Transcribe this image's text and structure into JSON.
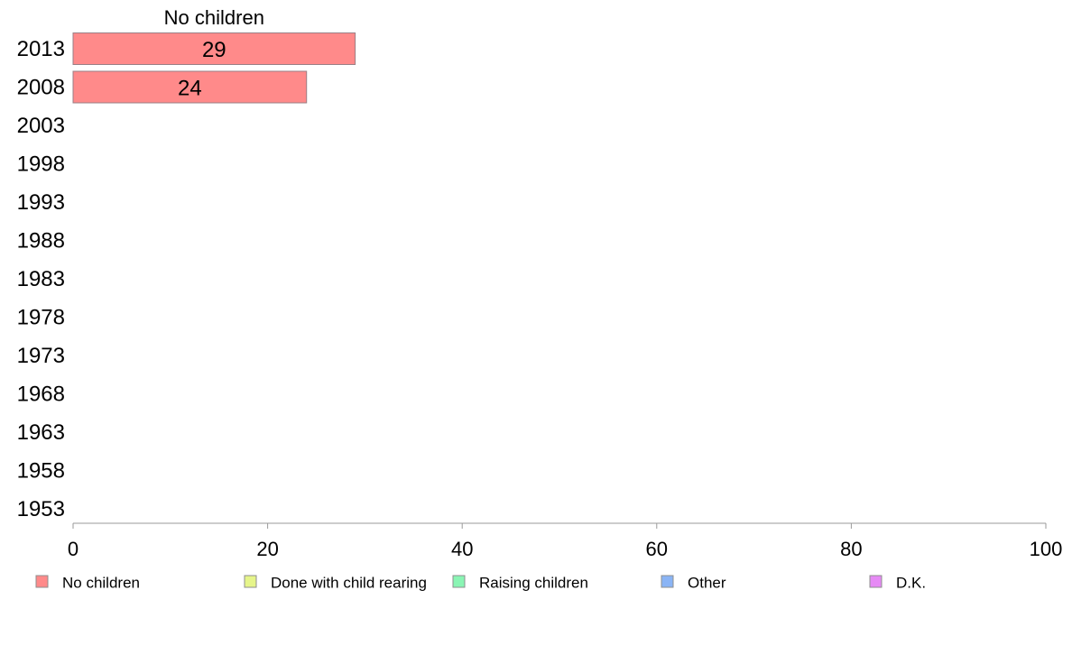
{
  "chart_data": {
    "type": "bar",
    "orientation": "horizontal",
    "stacked": true,
    "categories": [
      "2013",
      "2008",
      "2003",
      "1998",
      "1993",
      "1988",
      "1983",
      "1978",
      "1973",
      "1968",
      "1963",
      "1958",
      "1953"
    ],
    "series": [
      {
        "name": "No children",
        "color": "#ff8a8a",
        "values": [
          29,
          24,
          null,
          null,
          null,
          null,
          null,
          null,
          null,
          null,
          null,
          null,
          null
        ]
      },
      {
        "name": "Done with child rearing",
        "color": "#e6f58a",
        "values": [
          null,
          null,
          null,
          null,
          null,
          null,
          null,
          null,
          null,
          null,
          null,
          null,
          null
        ]
      },
      {
        "name": "Raising children",
        "color": "#8af5b4",
        "values": [
          null,
          null,
          null,
          null,
          null,
          null,
          null,
          null,
          null,
          null,
          null,
          null,
          null
        ]
      },
      {
        "name": "Other",
        "color": "#8ab4f5",
        "values": [
          null,
          null,
          null,
          null,
          null,
          null,
          null,
          null,
          null,
          null,
          null,
          null,
          null
        ]
      },
      {
        "name": "D.K.",
        "color": "#e68af5",
        "values": [
          null,
          null,
          null,
          null,
          null,
          null,
          null,
          null,
          null,
          null,
          null,
          null,
          null
        ]
      }
    ],
    "series_label_shown": "No children",
    "xlim": [
      0,
      100
    ],
    "xticks": [
      "0",
      "20",
      "40",
      "60",
      "80",
      "100"
    ],
    "grid": false,
    "legend_position": "bottom"
  }
}
